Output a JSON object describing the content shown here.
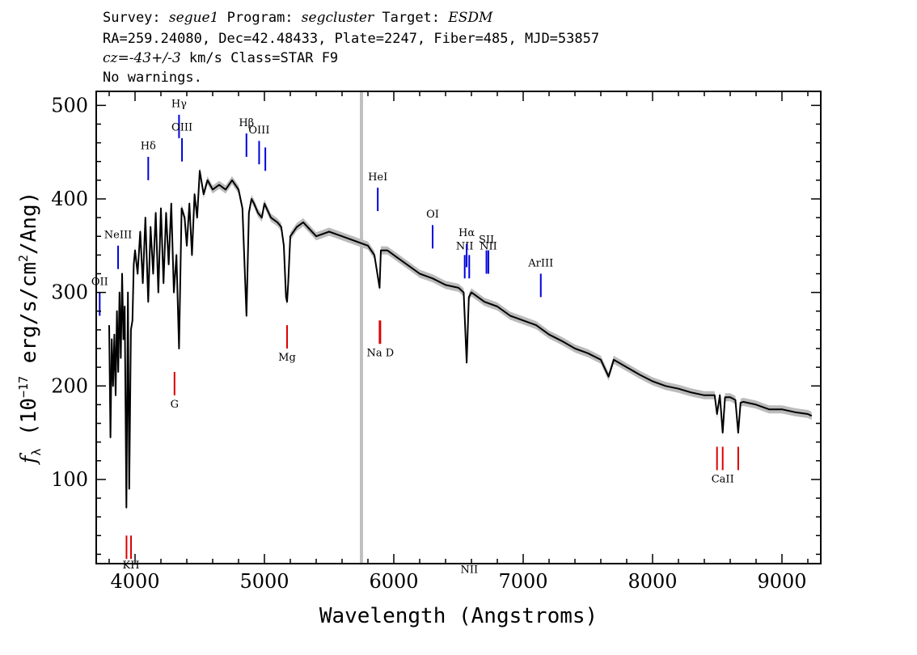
{
  "header": {
    "survey_label": "Survey:",
    "survey": "segue1",
    "program_label": "Program:",
    "program": "segcluster",
    "target_label": "Target:",
    "target": "ESDM",
    "coords": "RA=259.24080, Dec=42.48433, Plate=2247, Fiber=485, MJD=53857",
    "cz_label": "cz=",
    "cz_value": "-43+/-3",
    "cz_unit": "km/s",
    "class": "Class=STAR F9",
    "warnings": "No warnings."
  },
  "colors": {
    "flux": "#000000",
    "error_band": "#bbbbbb",
    "marker_line": "#c0c0c0",
    "emission": "#0000dd",
    "absorption": "#dd0000"
  },
  "chart_data": {
    "type": "line",
    "xlabel": "Wavelength (Angstroms)",
    "ylabel_parts": [
      "f",
      "λ",
      " (10",
      "−17",
      " erg/s/cm",
      "2",
      "/Ang)"
    ],
    "xlim": [
      3700,
      9300
    ],
    "ylim": [
      10,
      515
    ],
    "x_ticks": [
      4000,
      5000,
      6000,
      7000,
      8000,
      9000
    ],
    "y_ticks": [
      100,
      200,
      300,
      400,
      500
    ],
    "x_minor_step": 200,
    "y_minor_step": 20,
    "vertical_marker": 5750,
    "series": [
      {
        "x": [
          3800,
          3810,
          3820,
          3830,
          3840,
          3850,
          3860,
          3870,
          3880,
          3890,
          3900,
          3910,
          3920,
          3933,
          3945,
          3955,
          3968,
          3980,
          3990,
          4000,
          4020,
          4040,
          4060,
          4080,
          4102,
          4120,
          4140,
          4160,
          4180,
          4200,
          4220,
          4240,
          4260,
          4280,
          4300,
          4320,
          4340,
          4360,
          4383,
          4400,
          4420,
          4440,
          4460,
          4480,
          4500,
          4530,
          4560,
          4600,
          4650,
          4700,
          4750,
          4800,
          4830,
          4861,
          4880,
          4900,
          4920,
          4950,
          4980,
          5000,
          5050,
          5100,
          5130,
          5150,
          5167,
          5175,
          5184,
          5200,
          5250,
          5300,
          5400,
          5500,
          5600,
          5700,
          5800,
          5850,
          5890,
          5900,
          5950,
          6000,
          6100,
          6200,
          6300,
          6400,
          6500,
          6540,
          6563,
          6580,
          6600,
          6700,
          6800,
          6900,
          7000,
          7100,
          7200,
          7300,
          7400,
          7500,
          7600,
          7660,
          7700,
          7800,
          7900,
          8000,
          8100,
          8200,
          8300,
          8400,
          8480,
          8498,
          8520,
          8542,
          8560,
          8600,
          8640,
          8662,
          8680,
          8700,
          8800,
          8900,
          9000,
          9100,
          9200,
          9230
        ],
        "y": [
          265,
          145,
          250,
          200,
          255,
          190,
          280,
          215,
          300,
          230,
          320,
          250,
          285,
          70,
          300,
          90,
          260,
          270,
          330,
          345,
          320,
          365,
          310,
          380,
          290,
          370,
          320,
          385,
          300,
          390,
          310,
          385,
          330,
          395,
          300,
          340,
          240,
          390,
          380,
          350,
          395,
          340,
          405,
          380,
          430,
          405,
          420,
          410,
          415,
          410,
          420,
          410,
          390,
          275,
          385,
          400,
          395,
          385,
          380,
          395,
          380,
          375,
          370,
          350,
          295,
          290,
          310,
          360,
          370,
          375,
          360,
          365,
          360,
          355,
          350,
          340,
          305,
          345,
          345,
          340,
          330,
          320,
          315,
          308,
          305,
          300,
          225,
          295,
          300,
          290,
          285,
          275,
          270,
          265,
          255,
          248,
          240,
          235,
          228,
          210,
          228,
          220,
          212,
          205,
          200,
          197,
          193,
          190,
          190,
          170,
          190,
          150,
          188,
          188,
          185,
          150,
          182,
          183,
          180,
          175,
          175,
          172,
          170,
          168
        ]
      }
    ],
    "emission_lines": [
      {
        "label": "OII",
        "wave": 3727,
        "y_top": 300,
        "y_bottom": 275,
        "label_y": 308
      },
      {
        "label": "NeIII",
        "wave": 3869,
        "y_top": 350,
        "y_bottom": 325,
        "label_y": 358
      },
      {
        "label": "Hδ",
        "wave": 4102,
        "y_top": 445,
        "y_bottom": 420,
        "label_y": 453
      },
      {
        "label": "Hγ",
        "wave": 4340,
        "y_top": 490,
        "y_bottom": 465,
        "label_y": 498
      },
      {
        "label": "OIII",
        "wave": 4363,
        "y_top": 465,
        "y_bottom": 440,
        "label_y": 473
      },
      {
        "label": "Hβ",
        "wave": 4861,
        "y_top": 470,
        "y_bottom": 445,
        "label_y": 478
      },
      {
        "label": "OIII",
        "wave": 4959,
        "y_top": 462,
        "y_bottom": 437,
        "label_y": 470
      },
      {
        "label": "",
        "wave": 5007,
        "y_top": 455,
        "y_bottom": 430,
        "label_y": 0
      },
      {
        "label": "HeI",
        "wave": 5876,
        "y_top": 412,
        "y_bottom": 387,
        "label_y": 420
      },
      {
        "label": "OI",
        "wave": 6300,
        "y_top": 372,
        "y_bottom": 347,
        "label_y": 380
      },
      {
        "label": "NII",
        "wave": 6548,
        "y_top": 340,
        "y_bottom": 315,
        "label_y": 346
      },
      {
        "label": "Hα",
        "wave": 6563,
        "y_top": 352,
        "y_bottom": 327,
        "label_y": 360
      },
      {
        "label": "NII",
        "wave": 6583,
        "y_top": 340,
        "y_bottom": 315,
        "label_y": 0
      },
      {
        "label": "SII",
        "wave": 6716,
        "y_top": 345,
        "y_bottom": 320,
        "label_y": 353
      },
      {
        "label": "NII",
        "wave": 6731,
        "y_top": 345,
        "y_bottom": 320,
        "label_y": 346
      },
      {
        "label": "ArIII",
        "wave": 7136,
        "y_top": 320,
        "y_bottom": 295,
        "label_y": 328
      }
    ],
    "absorption_lines": [
      {
        "label": "",
        "wave": 3934,
        "y_top": 40,
        "y_bottom": 15,
        "label_y": 0
      },
      {
        "label": "KH",
        "wave": 3969,
        "y_top": 40,
        "y_bottom": 15,
        "label_y": 5
      },
      {
        "label": "G",
        "wave": 4305,
        "y_top": 215,
        "y_bottom": 190,
        "label_y": 177
      },
      {
        "label": "Mg",
        "wave": 5175,
        "y_top": 265,
        "y_bottom": 240,
        "label_y": 227
      },
      {
        "label": "",
        "wave": 5890,
        "y_top": 270,
        "y_bottom": 245,
        "label_y": 0
      },
      {
        "label": "Na D",
        "wave": 5896,
        "y_top": 270,
        "y_bottom": 245,
        "label_y": 232
      },
      {
        "label": "",
        "wave": 8498,
        "y_top": 135,
        "y_bottom": 110,
        "label_y": 0
      },
      {
        "label": "CaII",
        "wave": 8542,
        "y_top": 135,
        "y_bottom": 110,
        "label_y": 97
      },
      {
        "label": "",
        "wave": 8662,
        "y_top": 135,
        "y_bottom": 110,
        "label_y": 0
      }
    ]
  }
}
